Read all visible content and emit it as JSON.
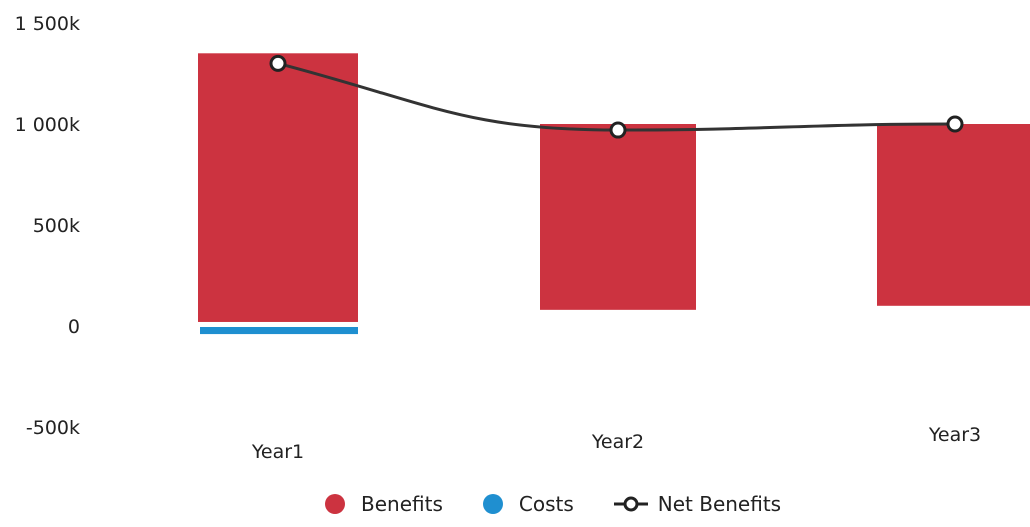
{
  "chart_data": {
    "type": "bar",
    "categories": [
      "Year1",
      "Year2",
      "Year3"
    ],
    "y_ticks": [
      "-500k",
      "0",
      "500k",
      "1 000k",
      "1 500k"
    ],
    "y_tick_values": [
      -500000,
      0,
      500000,
      1000000,
      1500000
    ],
    "ylim": [
      -500000,
      1500000
    ],
    "grid": false,
    "legend_position": "bottom",
    "series": [
      {
        "name": "Benefits",
        "type": "bar",
        "color": "#cc3340",
        "values": [
          1350000,
          1000000,
          1000000
        ],
        "bases": [
          20000,
          80000,
          100000
        ]
      },
      {
        "name": "Costs",
        "type": "bar",
        "color": "#1f8fd0",
        "values": [
          -40000,
          0,
          0
        ]
      },
      {
        "name": "Net Benefits",
        "type": "line",
        "color": "#333333",
        "values": [
          1300000,
          970000,
          1000000
        ]
      }
    ]
  },
  "legend": {
    "benefits": "Benefits",
    "costs": "Costs",
    "net_benefits": "Net Benefits",
    "benefits_color": "#cc3340",
    "costs_color": "#1f8fd0"
  }
}
